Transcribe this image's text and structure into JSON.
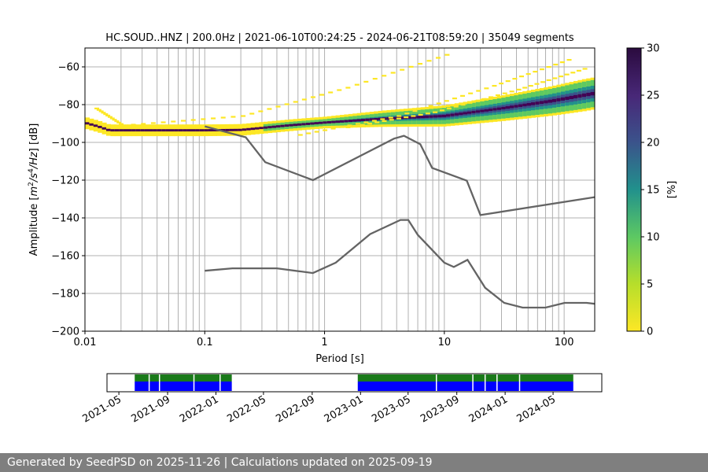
{
  "chart_data": [
    {
      "type": "heatmap",
      "title": "HC.SOUD..HNZ | 200.0Hz | 2021-06-10T00:24:25 - 2024-06-21T08:59:20 | 35049 segments",
      "xlabel": "Period [s]",
      "ylabel_parts": {
        "pre": "Amplitude [",
        "m": "m",
        "exp2": "2",
        "slash": "/",
        "s": "s",
        "exp4": "4",
        "hz": "/Hz",
        "post": "] [dB]"
      },
      "x_scale": "log",
      "xlim": [
        0.01,
        180
      ],
      "ylim": [
        -200,
        -50
      ],
      "x_ticks": [
        {
          "value": 0.01,
          "label": "0.01"
        },
        {
          "value": 0.1,
          "label": "0.1"
        },
        {
          "value": 1,
          "label": "1"
        },
        {
          "value": 10,
          "label": "10"
        },
        {
          "value": 100,
          "label": "100"
        }
      ],
      "y_ticks": [
        {
          "value": -60,
          "label": "−60"
        },
        {
          "value": -80,
          "label": "−80"
        },
        {
          "value": -100,
          "label": "−100"
        },
        {
          "value": -120,
          "label": "−120"
        },
        {
          "value": -140,
          "label": "−140"
        },
        {
          "value": -160,
          "label": "−160"
        },
        {
          "value": -180,
          "label": "−180"
        },
        {
          "value": -200,
          "label": "−200"
        }
      ],
      "grid": true,
      "noise_models": [
        {
          "points": [
            [
              0.1,
              -91.5
            ],
            [
              0.22,
              -97.3
            ],
            [
              0.32,
              -110.5
            ],
            [
              0.8,
              -120
            ],
            [
              3.8,
              -98
            ],
            [
              4.6,
              -96.5
            ],
            [
              6.3,
              -101
            ],
            [
              7.9,
              -113.5
            ],
            [
              15.4,
              -120.3
            ],
            [
              20,
              -138.5
            ],
            [
              180,
              -129
            ]
          ]
        },
        {
          "points": [
            [
              0.1,
              -168
            ],
            [
              0.17,
              -166.7
            ],
            [
              0.4,
              -166.7
            ],
            [
              0.8,
              -169.2
            ],
            [
              1.24,
              -163.7
            ],
            [
              2.4,
              -148.6
            ],
            [
              4.3,
              -141.1
            ],
            [
              5,
              -141.1
            ],
            [
              6,
              -149
            ],
            [
              10,
              -163.7
            ],
            [
              12,
              -166
            ],
            [
              15.6,
              -162.2
            ],
            [
              21.9,
              -177
            ],
            [
              31.6,
              -185
            ],
            [
              45,
              -187.5
            ],
            [
              70,
              -187.5
            ],
            [
              101,
              -185
            ],
            [
              154,
              -185
            ],
            [
              180,
              -185.5
            ]
          ]
        }
      ],
      "psd_mode": [
        [
          0.01,
          -89.6
        ],
        [
          0.013,
          -91.6
        ],
        [
          0.016,
          -93.6
        ],
        [
          0.1,
          -93.6
        ],
        [
          0.2,
          -93.4
        ],
        [
          0.5,
          -91
        ],
        [
          1,
          -89.5
        ],
        [
          3,
          -87.5
        ],
        [
          10,
          -86
        ],
        [
          30,
          -82
        ],
        [
          80,
          -78
        ],
        [
          180,
          -74
        ]
      ],
      "colorbar": {
        "label": "[%]",
        "min": 0,
        "max": 30,
        "ticks": [
          0,
          5,
          10,
          15,
          20,
          25,
          30
        ],
        "colors": [
          "#fde725",
          "#5ec962",
          "#21918c",
          "#3b528b",
          "#440154",
          "#2b0b3f"
        ]
      }
    },
    {
      "type": "timeline",
      "x_range": [
        "2021-04-01",
        "2024-09-01"
      ],
      "x_ticks": [
        "2021-05",
        "2021-09",
        "2022-01",
        "2022-05",
        "2022-09",
        "2023-01",
        "2023-05",
        "2023-09",
        "2024-01",
        "2024-05"
      ],
      "coverage_periods": [
        [
          "2021-06-10",
          "2022-02-10"
        ],
        [
          "2022-12-25",
          "2024-06-21"
        ]
      ],
      "gaps": [
        "2021-07-15",
        "2021-08-10",
        "2021-11-05",
        "2022-01-10",
        "2023-07-10",
        "2023-10-10",
        "2023-11-10",
        "2023-12-10",
        "2024-02-05"
      ],
      "colors": {
        "top": "#1a7a1a",
        "bottom": "#0000ff"
      }
    }
  ],
  "footer": {
    "text": "Generated by SeedPSD on 2025-11-26 | Calculations updated on 2025-09-19"
  }
}
